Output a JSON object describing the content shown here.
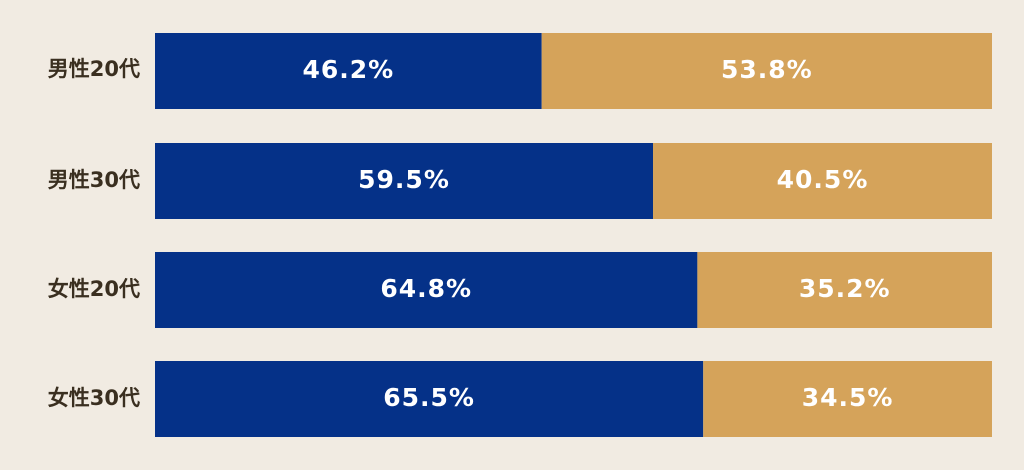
{
  "chart_data": {
    "type": "bar",
    "orientation": "horizontal",
    "stacked": true,
    "normalized": true,
    "categories": [
      "男性20代",
      "男性30代",
      "女性20代",
      "女性30代"
    ],
    "series": [
      {
        "values": [
          46.2,
          59.5,
          64.8,
          65.5
        ],
        "labels": [
          "46.2%",
          "59.5%",
          "64.8%",
          "65.5%"
        ]
      },
      {
        "values": [
          53.8,
          40.5,
          35.2,
          34.5
        ],
        "labels": [
          "53.8%",
          "40.5%",
          "35.2%",
          "34.5%"
        ]
      }
    ],
    "xlim": [
      0,
      100
    ],
    "grid": false,
    "colors": {
      "series_0": "#053188",
      "series_1": "#d5a35a",
      "background": "#f1ebe2"
    }
  }
}
